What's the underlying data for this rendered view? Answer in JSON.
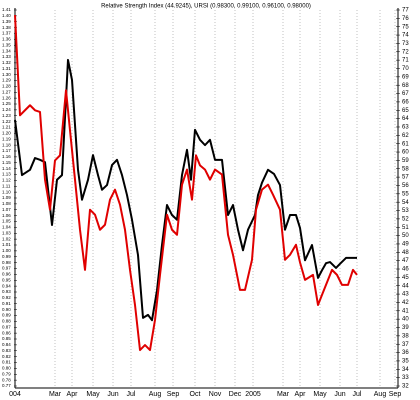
{
  "chart_data": {
    "type": "line",
    "title": "Relative Strength Index (44.9245), URSI (0.98300, 0.99100, 0.96100, 0.98000)",
    "xlim": [
      0,
      383
    ],
    "xticks": [
      {
        "value": 0,
        "label": "004"
      },
      {
        "value": 40,
        "label": "Mar"
      },
      {
        "value": 57,
        "label": "Apr"
      },
      {
        "value": 78,
        "label": "May"
      },
      {
        "value": 98,
        "label": "Jun"
      },
      {
        "value": 116,
        "label": "Jul"
      },
      {
        "value": 140,
        "label": "Aug"
      },
      {
        "value": 158,
        "label": "Sep"
      },
      {
        "value": 180,
        "label": "Oct"
      },
      {
        "value": 200,
        "label": "Nov"
      },
      {
        "value": 220,
        "label": "Dec"
      },
      {
        "value": 238,
        "label": "2005"
      },
      {
        "value": 268,
        "label": "Mar"
      },
      {
        "value": 285,
        "label": "Apr"
      },
      {
        "value": 305,
        "label": "May"
      },
      {
        "value": 325,
        "label": "Jun"
      },
      {
        "value": 342,
        "label": "Jul"
      },
      {
        "value": 365,
        "label": "Aug"
      },
      {
        "value": 380,
        "label": "Sep"
      }
    ],
    "ylim": [
      0.77,
      1.41
    ],
    "yticks": [
      1.41,
      {
        "value": 1.4,
        "label": "1.40"
      },
      1.39,
      1.38,
      1.37,
      1.36,
      1.35,
      1.34,
      1.33,
      1.32,
      1.31,
      {
        "value": 1.3,
        "label": "1.30"
      },
      1.29,
      1.28,
      1.27,
      1.26,
      1.25,
      1.24,
      1.23,
      1.22,
      1.21,
      {
        "value": 1.2,
        "label": "1.20"
      },
      1.19,
      1.18,
      1.17,
      1.16,
      1.15,
      1.14,
      1.13,
      1.12,
      1.11,
      {
        "value": 1.1,
        "label": "1.10"
      },
      1.09,
      1.08,
      1.07,
      1.06,
      1.05,
      1.04,
      1.03,
      1.02,
      1.01,
      {
        "value": 1.0,
        "label": "1.00"
      },
      0.99,
      0.98,
      0.97,
      0.96,
      0.95,
      0.94,
      0.93,
      0.92,
      0.91,
      {
        "value": 0.9,
        "label": "0.90"
      },
      0.89,
      0.88,
      0.87,
      0.86,
      0.85,
      0.84,
      0.83,
      0.82,
      0.81,
      {
        "value": 0.8,
        "label": "0.80"
      },
      0.79,
      0.78,
      0.77
    ],
    "y2lim": [
      32,
      77
    ],
    "y2ticks": [
      77,
      76,
      75,
      74,
      73,
      72,
      71,
      70,
      69,
      68,
      67,
      66,
      65,
      64,
      63,
      62,
      61,
      60,
      59,
      58,
      57,
      56,
      55,
      54,
      53,
      52,
      51,
      50,
      49,
      48,
      47,
      46,
      45,
      44,
      43,
      42,
      41,
      40,
      39,
      38,
      37,
      36,
      35,
      34,
      33,
      32
    ],
    "grid": true,
    "series": [
      {
        "color": "#000000",
        "axis": "y",
        "x": [
          0,
          7,
          15,
          20,
          25,
          30,
          37,
          42,
          47,
          53,
          57,
          63,
          67,
          73,
          78,
          83,
          87,
          92,
          97,
          102,
          107,
          112,
          117,
          123,
          128,
          133,
          137,
          142,
          147,
          152,
          157,
          162,
          167,
          172,
          176,
          180,
          185,
          190,
          195,
          200,
          207,
          213,
          218,
          223,
          228,
          233,
          240,
          243,
          247,
          253,
          259,
          265,
          270,
          275,
          281,
          285,
          290,
          297,
          303,
          307,
          311,
          315,
          321,
          325,
          331,
          337,
          342
        ],
        "values": [
          1.223,
          1.129,
          1.138,
          1.158,
          1.155,
          1.151,
          1.044,
          1.121,
          1.129,
          1.325,
          1.291,
          1.138,
          1.087,
          1.121,
          1.163,
          1.129,
          1.104,
          1.112,
          1.146,
          1.155,
          1.129,
          1.095,
          1.053,
          0.993,
          0.886,
          0.891,
          0.882,
          0.933,
          1.01,
          1.078,
          1.061,
          1.053,
          1.129,
          1.172,
          1.121,
          1.206,
          1.189,
          1.18,
          1.189,
          1.155,
          1.155,
          1.061,
          1.078,
          1.036,
          1.001,
          1.036,
          1.061,
          1.095,
          1.116,
          1.138,
          1.131,
          1.112,
          1.036,
          1.061,
          1.061,
          1.039,
          0.984,
          1.01,
          0.954,
          0.967,
          0.979,
          0.981,
          0.971,
          0.978,
          0.988,
          0.988,
          0.988
        ]
      },
      {
        "color": "#e00000",
        "axis": "y2",
        "x": [
          0,
          5,
          10,
          15,
          20,
          25,
          30,
          35,
          40,
          45,
          51,
          55,
          60,
          65,
          70,
          75,
          80,
          85,
          90,
          95,
          100,
          105,
          110,
          115,
          120,
          125,
          130,
          135,
          140,
          145,
          152,
          157,
          162,
          167,
          172,
          177,
          181,
          185,
          190,
          195,
          200,
          207,
          213,
          218,
          225,
          230,
          237,
          241,
          247,
          253,
          258,
          265,
          270,
          275,
          281,
          285,
          290,
          298,
          303,
          307,
          311,
          317,
          322,
          327,
          333,
          338,
          342
        ],
        "values": [
          76.4,
          64.4,
          65.0,
          65.6,
          65.0,
          64.8,
          56.7,
          53.1,
          59.0,
          59.6,
          67.4,
          62.6,
          56.7,
          50.7,
          45.9,
          53.1,
          52.5,
          50.7,
          51.3,
          54.3,
          55.5,
          53.7,
          50.7,
          45.9,
          41.7,
          36.3,
          36.9,
          36.3,
          39.9,
          45.3,
          52.5,
          50.7,
          50.1,
          56.1,
          57.9,
          54.3,
          59.6,
          58.4,
          57.9,
          56.7,
          57.9,
          57.3,
          50.1,
          47.7,
          43.5,
          43.5,
          47.1,
          53.1,
          55.5,
          56.1,
          54.9,
          53.1,
          47.1,
          47.7,
          48.9,
          46.8,
          44.7,
          45.3,
          41.7,
          42.9,
          44.1,
          45.9,
          45.3,
          44.1,
          44.1,
          45.9,
          45.3
        ]
      }
    ]
  }
}
